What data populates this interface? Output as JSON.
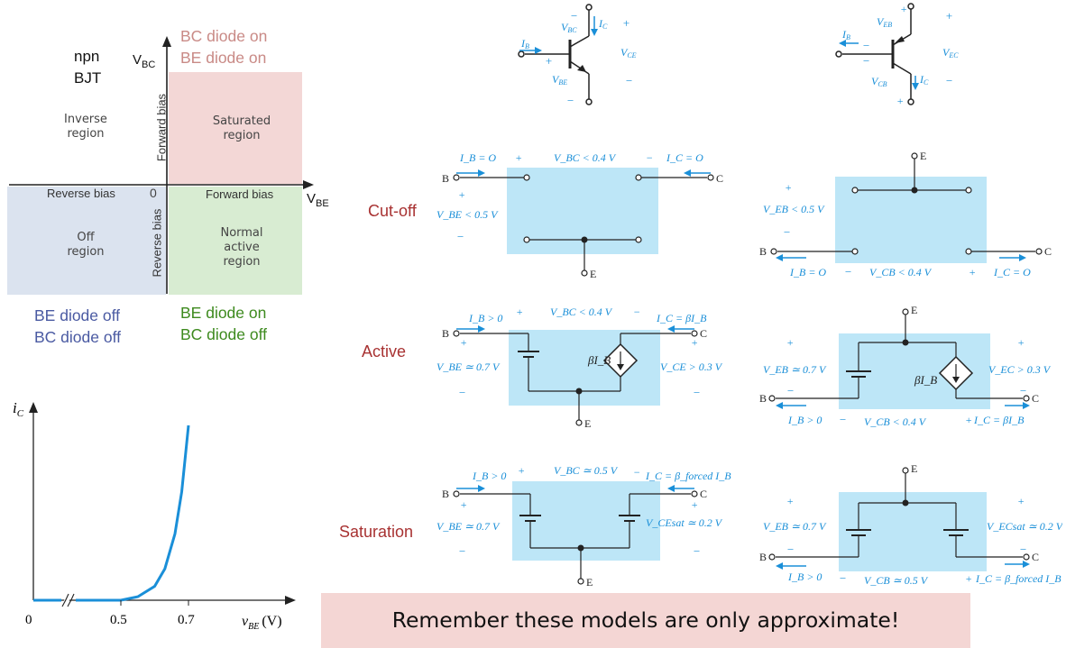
{
  "quadrant": {
    "title_line1": "npn",
    "title_line2": "BJT",
    "axis_vbc": "V",
    "axis_vbc_sub": "BC",
    "axis_vbe": "V",
    "axis_vbe_sub": "BE",
    "origin": "0",
    "forward_bias_vertical": "Forward bias",
    "reverse_bias_vertical": "Reverse bias",
    "forward_bias_horizontal": "Forward bias",
    "reverse_bias_horizontal": "Reverse bias",
    "inverse_region": [
      "Inverse",
      "region"
    ],
    "saturated_region": [
      "Saturated",
      "region"
    ],
    "off_region": [
      "Off",
      "region"
    ],
    "active_region": [
      "Normal",
      "active",
      "region"
    ],
    "top_status": [
      "BC diode on",
      "BE diode on"
    ],
    "bottom_left_status": [
      "BE diode off",
      "BC diode off"
    ],
    "bottom_right_status": [
      "BE diode on",
      "BC diode off"
    ],
    "colors": {
      "inverse": "#ffffff",
      "saturated": "#f3d7d6",
      "off": "#dbe3ef",
      "active": "#d8ecd2",
      "status_pink": "#c98a86",
      "status_blue": "#4a5aa2",
      "status_green": "#3d8a1e"
    }
  },
  "iv_plot": {
    "ylabel": "i",
    "ylabel_sub": "C",
    "xlabel": "v",
    "xlabel_sub": "BE",
    "xlabel_unit": "(V)",
    "ticks": [
      "0",
      "0.5",
      "0.7"
    ]
  },
  "chart_data": {
    "type": "line",
    "title": "",
    "xlabel": "vBE (V)",
    "ylabel": "iC",
    "x": [
      0.5,
      0.55,
      0.6,
      0.63,
      0.66,
      0.68,
      0.7
    ],
    "series": [
      {
        "values": [
          0,
          0.02,
          0.08,
          0.18,
          0.38,
          0.62,
          1.0
        ]
      }
    ],
    "xticks": [
      "0",
      "0.5",
      "0.7"
    ],
    "grid": false,
    "color": "#1a8fd8"
  },
  "modes": {
    "cutoff": "Cut-off",
    "active": "Active",
    "saturation": "Saturation"
  },
  "npn_symbol": {
    "vbc": "V",
    "vbc_sub": "BC",
    "ic": "I",
    "ic_sub": "C",
    "ib": "I",
    "ib_sub": "B",
    "vce": "V",
    "vce_sub": "CE",
    "vbe": "V",
    "vbe_sub": "BE"
  },
  "pnp_symbol": {
    "veb": "V",
    "veb_sub": "EB",
    "ib": "I",
    "ib_sub": "B",
    "vec": "V",
    "vec_sub": "EC",
    "vcb": "V",
    "vcb_sub": "CB",
    "ic": "I",
    "ic_sub": "C"
  },
  "npn_cutoff": {
    "ib": "I_B = O",
    "vbc": "V_BC < 0.4 V",
    "ic": "I_C = O",
    "vbe": "V_BE < 0.5 V",
    "b": "B",
    "c": "C",
    "e": "E"
  },
  "pnp_cutoff": {
    "veb": "V_EB < 0.5 V",
    "ib": "I_B = O",
    "vcb": "V_CB < 0.4 V",
    "ic": "I_C = O",
    "b": "B",
    "c": "C",
    "e": "E"
  },
  "npn_active": {
    "ib": "I_B > 0",
    "vbc": "V_BC < 0.4 V",
    "ic": "I_C = βI_B",
    "vbe": "V_BE ≃ 0.7 V",
    "vce": "V_CE > 0.3 V",
    "src": "βI_B",
    "b": "B",
    "c": "C",
    "e": "E"
  },
  "pnp_active": {
    "veb": "V_EB ≃ 0.7 V",
    "vec": "V_EC > 0.3 V",
    "ib": "I_B > 0",
    "vcb": "V_CB < 0.4 V",
    "ic": "I_C = βI_B",
    "src": "βI_B",
    "b": "B",
    "c": "C",
    "e": "E"
  },
  "npn_sat": {
    "ib": "I_B > 0",
    "vbc": "V_BC ≃ 0.5 V",
    "ic": "I_C = β_forced I_B",
    "vbe": "V_BE ≃ 0.7 V",
    "vce": "V_CEsat ≃ 0.2 V",
    "b": "B",
    "c": "C",
    "e": "E"
  },
  "pnp_sat": {
    "veb": "V_EB ≃ 0.7 V",
    "vec": "V_ECsat ≃ 0.2 V",
    "ib": "I_B > 0",
    "vcb": "V_CB ≃ 0.5 V",
    "ic": "I_C = β_forced I_B",
    "b": "B",
    "c": "C",
    "e": "E"
  },
  "banner": "Remember these models are only approximate!"
}
